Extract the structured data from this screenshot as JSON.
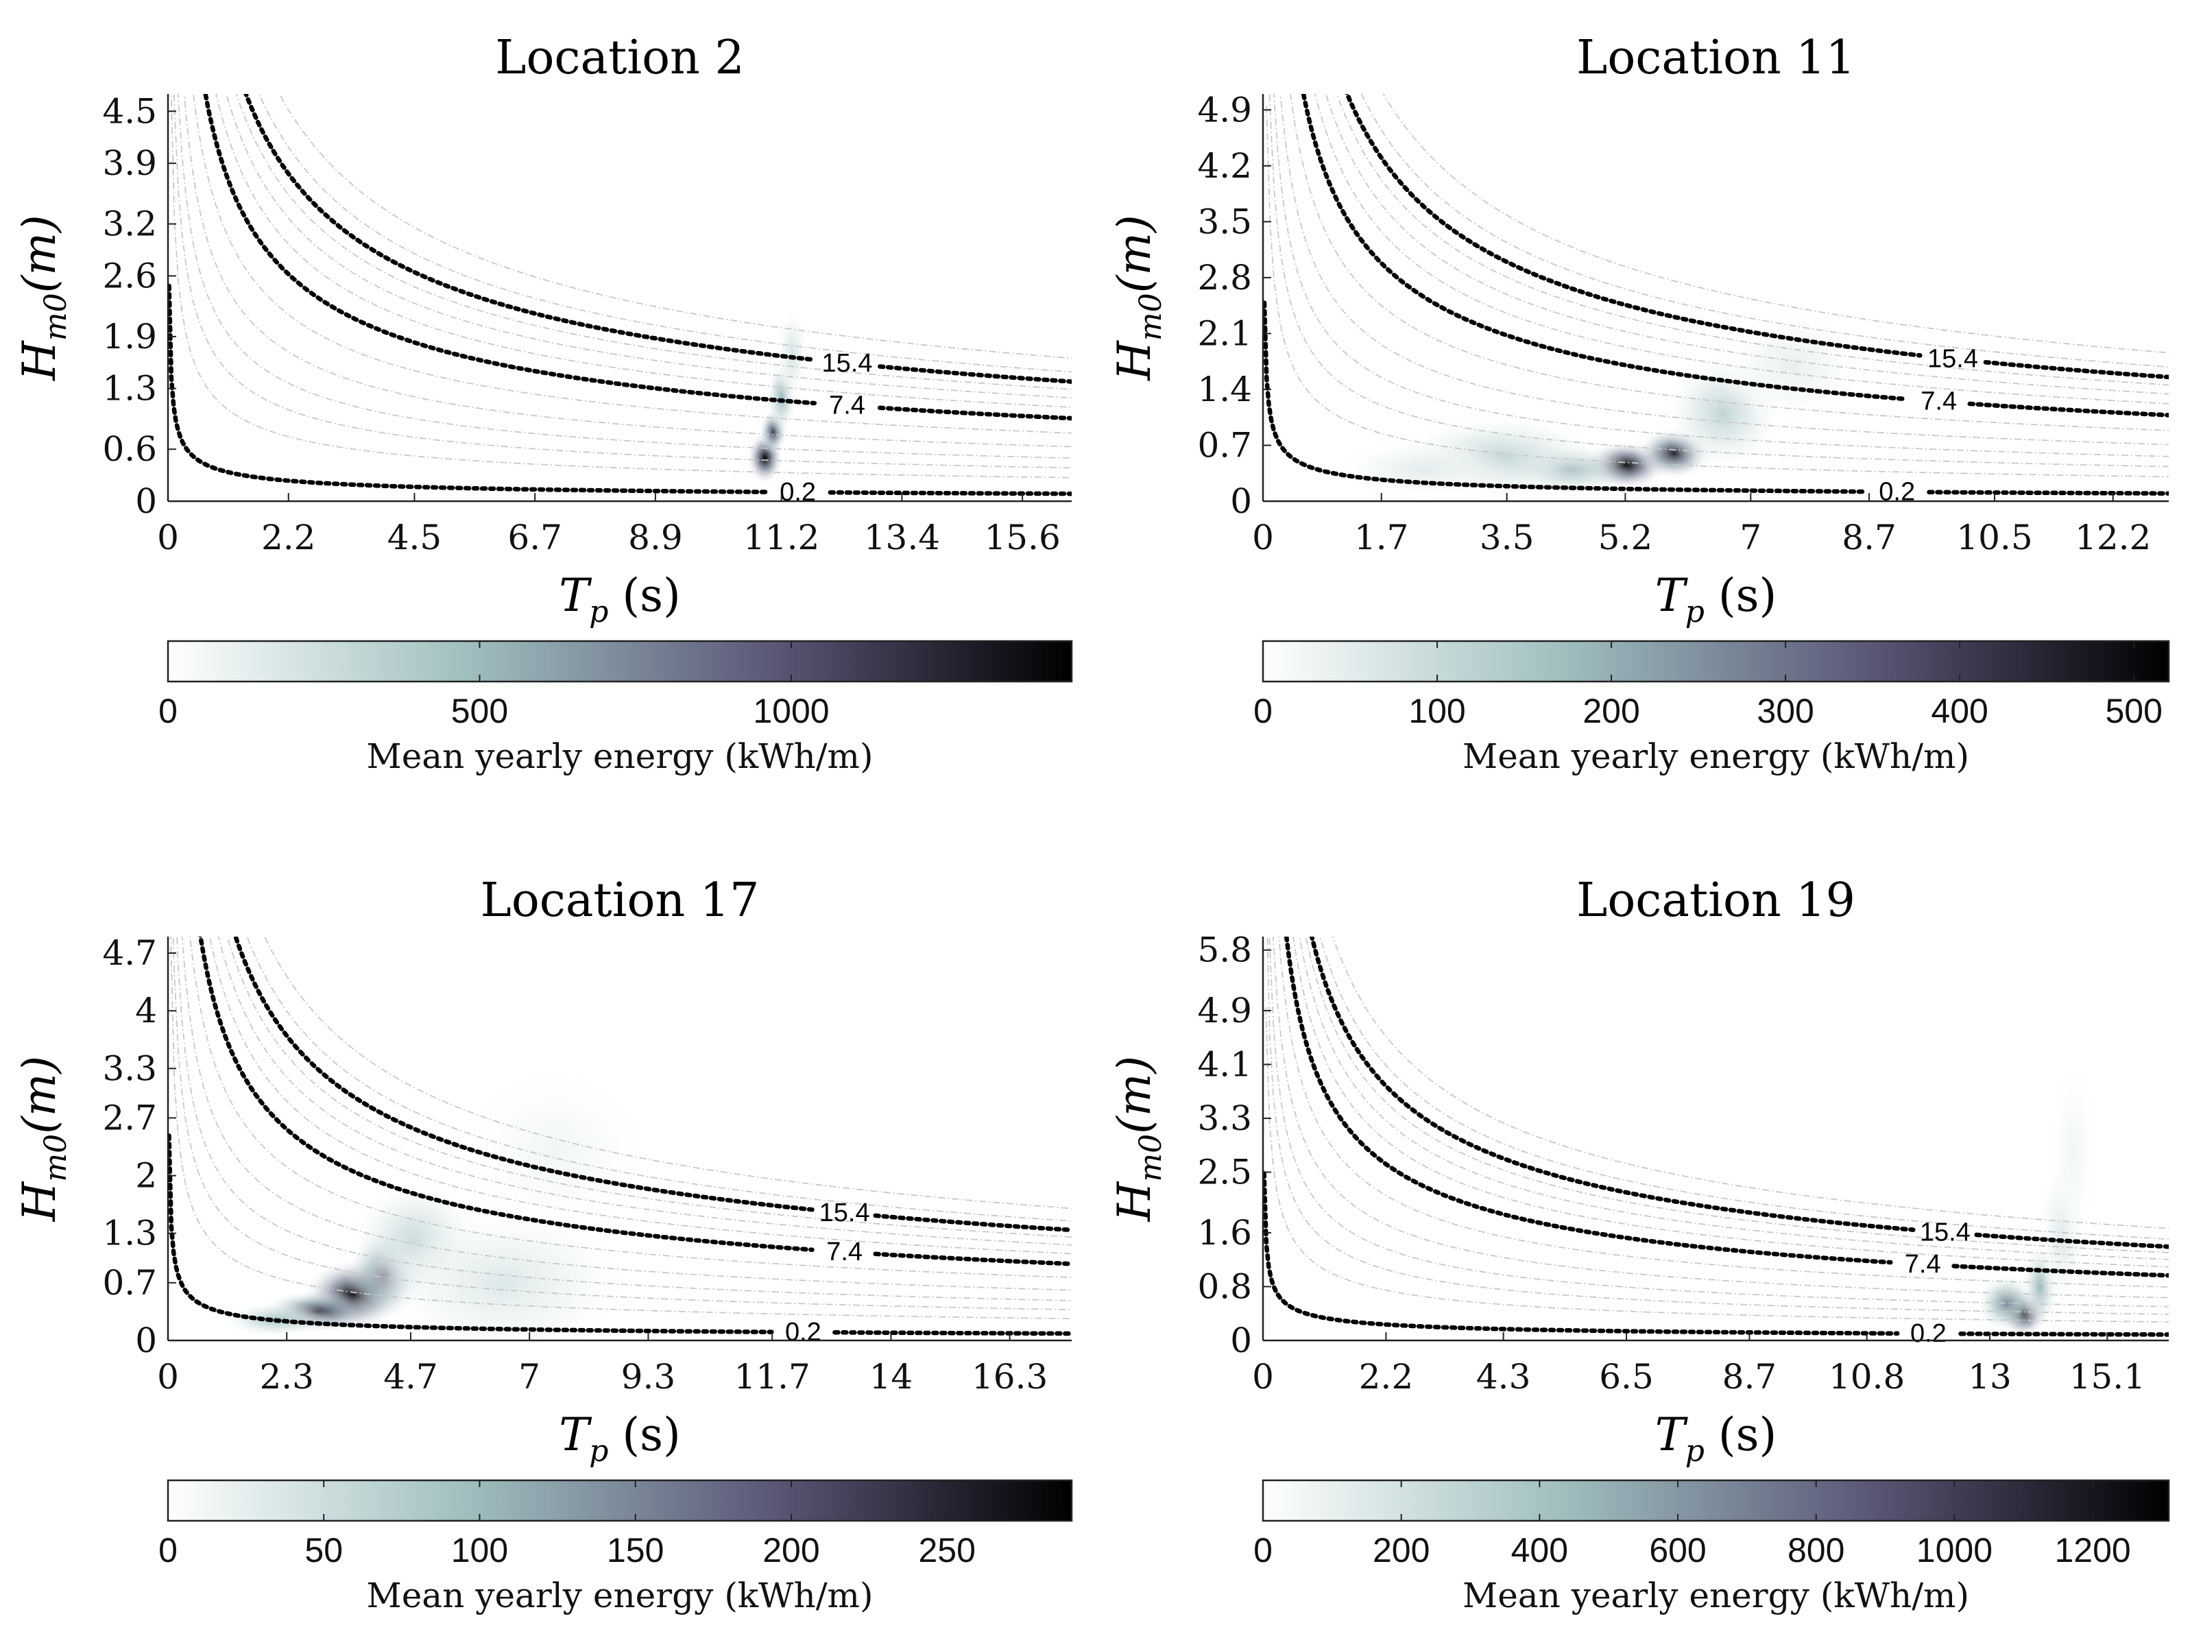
{
  "figure": {
    "colorbar_label": "Mean yearly energy (kWh/m)",
    "xlabel_main": "T",
    "xlabel_sub": "p",
    "xlabel_unit": "(s)",
    "ylabel_main": "H",
    "ylabel_sub": "m0",
    "ylabel_unit": "(m)"
  },
  "colormap": [
    "#ffffff",
    "#9fbebe",
    "#5b5878",
    "#000000"
  ],
  "chart_data": [
    {
      "type": "heatmap",
      "title": "Location 2",
      "xlabel": "T_p (s)",
      "ylabel": "H_m0(m)",
      "xlim": [
        0,
        16.5
      ],
      "ylim": [
        0,
        4.7
      ],
      "xticks": [
        "0",
        "2.2",
        "4.5",
        "6.7",
        "8.9",
        "11.2",
        "13.4",
        "15.6"
      ],
      "xtick_values": [
        0,
        2.2,
        4.5,
        6.7,
        8.9,
        11.2,
        13.4,
        15.6
      ],
      "yticks": [
        "0",
        "0.6",
        "1.3",
        "1.9",
        "2.6",
        "3.2",
        "3.9",
        "4.5"
      ],
      "ytick_values": [
        0,
        0.6,
        1.3,
        1.9,
        2.6,
        3.2,
        3.9,
        4.5
      ],
      "colorbar": {
        "min": 0,
        "max": 1450,
        "ticks": [
          "0",
          "500",
          "1000"
        ],
        "tick_values": [
          0,
          500,
          1000
        ]
      },
      "contours": [
        {
          "label": "0.2",
          "value": 0.2
        },
        {
          "label": "7.4",
          "value": 7.4
        },
        {
          "label": "15.4",
          "value": 15.4
        }
      ],
      "contour_label_tp": [
        11.5,
        12.4,
        12.4
      ],
      "energy_blobs": [
        {
          "tp": 10.9,
          "h": 0.5,
          "weight": 1.0,
          "sx": 0.15,
          "sy": 0.14
        },
        {
          "tp": 11.05,
          "h": 0.8,
          "weight": 0.75,
          "sx": 0.12,
          "sy": 0.12
        },
        {
          "tp": 11.2,
          "h": 1.2,
          "weight": 0.35,
          "sx": 0.13,
          "sy": 0.2
        },
        {
          "tp": 11.4,
          "h": 1.7,
          "weight": 0.15,
          "sx": 0.14,
          "sy": 0.25
        }
      ]
    },
    {
      "type": "heatmap",
      "title": "Location 11",
      "xlabel": "T_p (s)",
      "ylabel": "H_m0(m)",
      "xlim": [
        0,
        13
      ],
      "ylim": [
        0,
        5.1
      ],
      "xticks": [
        "0",
        "1.7",
        "3.5",
        "5.2",
        "7",
        "8.7",
        "10.5",
        "12.2"
      ],
      "xtick_values": [
        0,
        1.7,
        3.5,
        5.2,
        7,
        8.7,
        10.5,
        12.2
      ],
      "yticks": [
        "0",
        "0.7",
        "1.4",
        "2.1",
        "2.8",
        "3.5",
        "4.2",
        "4.9"
      ],
      "ytick_values": [
        0,
        0.7,
        1.4,
        2.1,
        2.8,
        3.5,
        4.2,
        4.9
      ],
      "colorbar": {
        "min": 0,
        "max": 520,
        "ticks": [
          "0",
          "100",
          "200",
          "300",
          "400",
          "500"
        ],
        "tick_values": [
          0,
          100,
          200,
          300,
          400,
          500
        ]
      },
      "contours": [
        {
          "label": "0.2",
          "value": 0.2
        },
        {
          "label": "7.4",
          "value": 7.4
        },
        {
          "label": "15.4",
          "value": 15.4
        }
      ],
      "contour_label_tp": [
        9.1,
        9.7,
        9.9
      ],
      "energy_blobs": [
        {
          "tp": 5.2,
          "h": 0.45,
          "weight": 1.0,
          "sx": 0.28,
          "sy": 0.14
        },
        {
          "tp": 5.9,
          "h": 0.6,
          "weight": 0.85,
          "sx": 0.25,
          "sy": 0.15
        },
        {
          "tp": 4.4,
          "h": 0.4,
          "weight": 0.4,
          "sx": 0.4,
          "sy": 0.15
        },
        {
          "tp": 3.4,
          "h": 0.55,
          "weight": 0.22,
          "sx": 0.7,
          "sy": 0.25
        },
        {
          "tp": 2.3,
          "h": 0.4,
          "weight": 0.1,
          "sx": 0.6,
          "sy": 0.18
        },
        {
          "tp": 6.6,
          "h": 1.1,
          "weight": 0.22,
          "sx": 0.4,
          "sy": 0.35
        },
        {
          "tp": 7.6,
          "h": 1.7,
          "weight": 0.08,
          "sx": 0.5,
          "sy": 0.35
        }
      ]
    },
    {
      "type": "heatmap",
      "title": "Location 17",
      "xlabel": "T_p (s)",
      "ylabel": "H_m0(m)",
      "xlim": [
        0,
        17.5
      ],
      "ylim": [
        0,
        4.9
      ],
      "xticks": [
        "0",
        "2.3",
        "4.7",
        "7",
        "9.3",
        "11.7",
        "14",
        "16.3"
      ],
      "xtick_values": [
        0,
        2.3,
        4.7,
        7,
        9.3,
        11.7,
        14,
        16.3
      ],
      "yticks": [
        "0",
        "0.7",
        "1.3",
        "2",
        "2.7",
        "3.3",
        "4",
        "4.7"
      ],
      "ytick_values": [
        0,
        0.7,
        1.3,
        2,
        2.7,
        3.3,
        4,
        4.7
      ],
      "colorbar": {
        "min": 0,
        "max": 290,
        "ticks": [
          "0",
          "50",
          "100",
          "150",
          "200",
          "250"
        ],
        "tick_values": [
          0,
          50,
          100,
          150,
          200,
          250
        ]
      },
      "contours": [
        {
          "label": "0.2",
          "value": 0.2
        },
        {
          "label": "7.4",
          "value": 7.4
        },
        {
          "label": "15.4",
          "value": 15.4
        }
      ],
      "contour_label_tp": [
        12.3,
        13.1,
        13.1
      ],
      "energy_blobs": [
        {
          "tp": 3.6,
          "h": 0.55,
          "weight": 1.0,
          "sx": 0.45,
          "sy": 0.2
        },
        {
          "tp": 2.9,
          "h": 0.35,
          "weight": 0.8,
          "sx": 0.5,
          "sy": 0.12
        },
        {
          "tp": 4.2,
          "h": 0.8,
          "weight": 0.7,
          "sx": 0.35,
          "sy": 0.25
        },
        {
          "tp": 2.1,
          "h": 0.25,
          "weight": 0.3,
          "sx": 0.5,
          "sy": 0.1
        },
        {
          "tp": 4.8,
          "h": 1.2,
          "weight": 0.22,
          "sx": 0.6,
          "sy": 0.35
        },
        {
          "tp": 6.5,
          "h": 0.7,
          "weight": 0.12,
          "sx": 1.2,
          "sy": 0.45
        },
        {
          "tp": 7.5,
          "h": 2.3,
          "weight": 0.05,
          "sx": 0.9,
          "sy": 0.5
        }
      ]
    },
    {
      "type": "heatmap",
      "title": "Location 19",
      "xlabel": "T_p (s)",
      "ylabel": "H_m0(m)",
      "xlim": [
        0,
        16.2
      ],
      "ylim": [
        0,
        6.0
      ],
      "xticks": [
        "0",
        "2.2",
        "4.3",
        "6.5",
        "8.7",
        "10.8",
        "13",
        "15.1"
      ],
      "xtick_values": [
        0,
        2.2,
        4.3,
        6.5,
        8.7,
        10.8,
        13,
        15.1
      ],
      "yticks": [
        "0",
        "0.8",
        "1.6",
        "2.5",
        "3.3",
        "4.1",
        "4.9",
        "5.8"
      ],
      "ytick_values": [
        0,
        0.8,
        1.6,
        2.5,
        3.3,
        4.1,
        4.9,
        5.8
      ],
      "colorbar": {
        "min": 0,
        "max": 1310,
        "ticks": [
          "0",
          "200",
          "400",
          "600",
          "800",
          "1000",
          "1200"
        ],
        "tick_values": [
          0,
          200,
          400,
          600,
          800,
          1000,
          1200
        ]
      },
      "contours": [
        {
          "label": "0.2",
          "value": 0.2
        },
        {
          "label": "7.4",
          "value": 7.4
        },
        {
          "label": "15.4",
          "value": 15.4
        }
      ],
      "contour_label_tp": [
        11.9,
        11.8,
        12.2
      ],
      "energy_blobs": [
        {
          "tp": 13.6,
          "h": 0.4,
          "weight": 1.0,
          "sx": 0.2,
          "sy": 0.16
        },
        {
          "tp": 13.3,
          "h": 0.55,
          "weight": 0.5,
          "sx": 0.25,
          "sy": 0.2
        },
        {
          "tp": 13.9,
          "h": 0.8,
          "weight": 0.35,
          "sx": 0.15,
          "sy": 0.3
        },
        {
          "tp": 14.3,
          "h": 1.6,
          "weight": 0.12,
          "sx": 0.2,
          "sy": 0.55
        },
        {
          "tp": 14.5,
          "h": 2.8,
          "weight": 0.05,
          "sx": 0.2,
          "sy": 0.7
        }
      ]
    }
  ]
}
